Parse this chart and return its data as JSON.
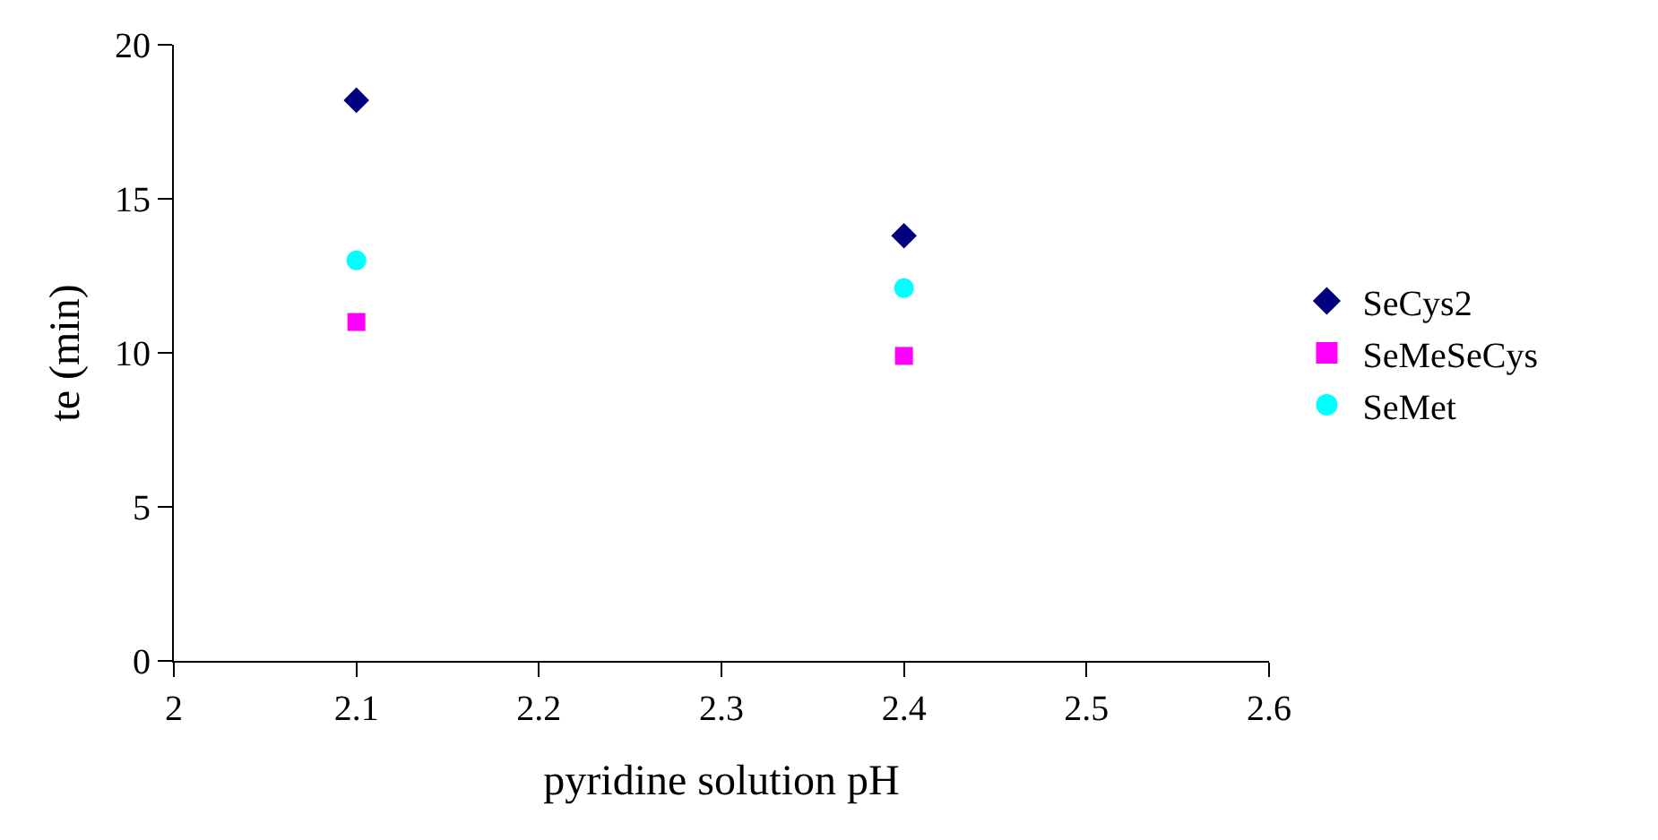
{
  "chart_data": {
    "type": "scatter",
    "xlabel": "pyridine solution pH",
    "ylabel": "te (min)",
    "x": [
      2.1,
      2.4
    ],
    "series": [
      {
        "name": "SeCys2",
        "color": "#000080",
        "marker": "diamond",
        "values": [
          18.2,
          13.8
        ]
      },
      {
        "name": "SeMeSeCys",
        "color": "#ff00ff",
        "marker": "square",
        "values": [
          11.0,
          9.9
        ]
      },
      {
        "name": "SeMet",
        "color": "#00ffff",
        "marker": "circle",
        "values": [
          13.0,
          12.1
        ]
      }
    ],
    "xlim": [
      2,
      2.6
    ],
    "xticks": [
      2,
      2.1,
      2.2,
      2.3,
      2.4,
      2.5,
      2.6
    ],
    "ylim": [
      0,
      20
    ],
    "yticks": [
      0,
      5,
      10,
      15,
      20
    ],
    "legend": "right"
  }
}
